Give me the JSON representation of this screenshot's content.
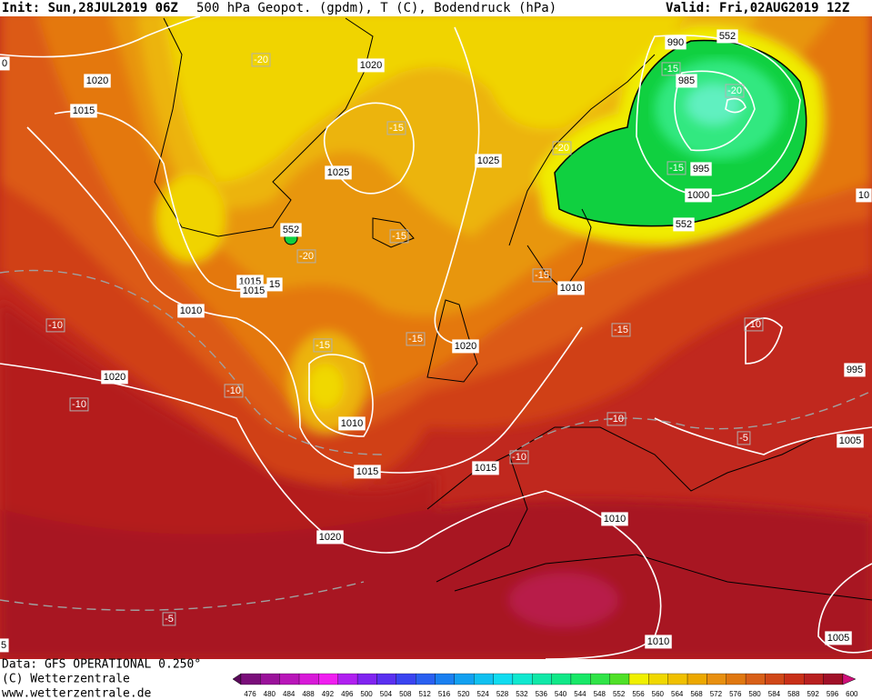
{
  "header": {
    "init": "Init: Sun,28JUL2019 06Z",
    "title": "500 hPa Geopot. (gpdm), T (C), Bodendruck (hPa)",
    "valid": "Valid: Fri,02AUG2019 12Z"
  },
  "footer": {
    "data": "Data: GFS OPERATIONAL 0.250°",
    "copyright": "(C) Wetterzentrale",
    "url": "www.wetterzentrale.de"
  },
  "map": {
    "labels": [
      "0",
      "1020",
      "1015",
      "-20",
      "1020",
      "-15",
      "1025",
      "1025",
      "-20",
      "990",
      "552",
      "-15",
      "985",
      "-20",
      "-15",
      "995",
      "1000",
      "552",
      "10",
      "552",
      "-20",
      "-15",
      "1015",
      "1015",
      "15",
      "1010",
      "-15",
      "1010",
      "-10",
      "-15",
      "-10",
      "-15",
      "-15",
      "1020",
      "995",
      "1020",
      "-10",
      "-10",
      "1010",
      "-10",
      "-5",
      "1005",
      "-10",
      "1015",
      "1015",
      "1010",
      "1020",
      "-5",
      "1005",
      "1010",
      "5"
    ]
  },
  "colorbar": {
    "ticks": [
      476,
      480,
      484,
      488,
      492,
      496,
      500,
      504,
      508,
      512,
      516,
      520,
      524,
      528,
      532,
      536,
      540,
      544,
      548,
      552,
      556,
      560,
      564,
      568,
      572,
      576,
      580,
      584,
      588,
      592,
      596,
      600
    ],
    "colors": [
      "#5a0a5a",
      "#7a0e7a",
      "#9a129a",
      "#b816b8",
      "#d81ad8",
      "#f01ef0",
      "#b020f0",
      "#8024f0",
      "#5a30f0",
      "#3a44f0",
      "#2a60f0",
      "#1a80f0",
      "#12a0f0",
      "#10c0f0",
      "#10dcf0",
      "#10e8d0",
      "#10e8a8",
      "#10e888",
      "#18e868",
      "#30e448",
      "#50e028",
      "#f0f000",
      "#f0d800",
      "#f0c000",
      "#eca800",
      "#e89010",
      "#e07810",
      "#d86018",
      "#d04818",
      "#c83018",
      "#b82020",
      "#a01028",
      "#d0107a"
    ]
  }
}
